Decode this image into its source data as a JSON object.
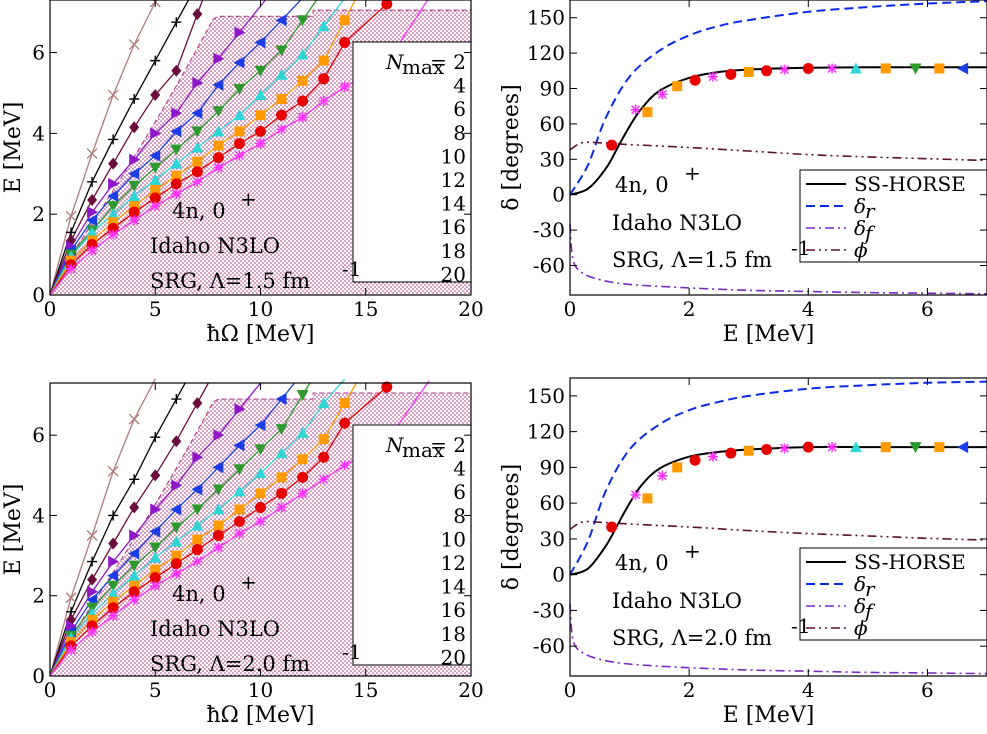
{
  "colors": {
    "nmax_2": "#b07a7a",
    "nmax_4": "#000000",
    "nmax_6": "#6b0d3c",
    "nmax_8": "#8f17c9",
    "nmax_10": "#1a3de6",
    "nmax_12": "#2e9a2e",
    "nmax_14": "#30d6d6",
    "nmax_16": "#ff9a00",
    "nmax_18": "#e60000",
    "nmax_20": "#ff33ff",
    "shade": "#b03080",
    "ss_horse": "#000000",
    "delta_r": "#0a2ae6",
    "delta_f": "#7a2bbf",
    "phi": "#5a1030"
  },
  "icons": {
    "marker_2": "cross-x",
    "marker_4": "plus",
    "marker_6": "diamond",
    "marker_8": "triangle-right",
    "marker_10": "triangle-left",
    "marker_12": "triangle-down",
    "marker_14": "triangle-up",
    "marker_16": "square",
    "marker_18": "circle",
    "marker_20": "asterisk"
  },
  "energy_panels": {
    "ylabel": "E [MeV]",
    "xlabel": "ħΩ [MeV]",
    "xlim": [
      0,
      20
    ],
    "ylim": [
      0,
      7.3
    ],
    "xticks": [
      "0",
      "5",
      "10",
      "15",
      "20"
    ],
    "yticks": [
      "0",
      "2",
      "4",
      "6"
    ],
    "legend_title": "N",
    "legend_title_sub": "max",
    "legend_eq": "= 2",
    "legend_labels": [
      "4",
      "6",
      "8",
      "10",
      "12",
      "14",
      "16",
      "18",
      "20"
    ],
    "annot_state": "4n, 0",
    "annot_state_sup": "+",
    "annot_interaction": "Idaho N3LO"
  },
  "phase_panels": {
    "ylabel": "δ [degrees]",
    "xlabel": "E [MeV]",
    "xlim": [
      0,
      7
    ],
    "ylim": [
      -85,
      165
    ],
    "xticks": [
      "0",
      "2",
      "4",
      "6"
    ],
    "yticks": [
      "150",
      "120",
      "90",
      "60",
      "30",
      "0",
      "-30",
      "-60"
    ],
    "legend_labels": [
      "SS-HORSE",
      "δ",
      "δ",
      "ϕ"
    ],
    "legend_subs": [
      "",
      "r",
      "f",
      ""
    ],
    "annot_state": "4n, 0",
    "annot_state_sup": "+",
    "annot_interaction": "Idaho N3LO"
  },
  "rows": [
    {
      "srg_label": "SRG, Λ=1.5 fm",
      "srg_sup": "-1"
    },
    {
      "srg_label": "SRG, Λ=2.0 fm",
      "srg_sup": "-1"
    }
  ],
  "chart_data": [
    {
      "type": "scatter",
      "xlabel": "ħΩ [MeV]",
      "ylabel": "E [MeV]",
      "xlim": [
        0,
        20
      ],
      "ylim": [
        0,
        7.3
      ],
      "grid": false,
      "legend": "right",
      "annotations": [
        "4n, 0+",
        "Idaho N3LO",
        "SRG, Λ=1.5 fm-1"
      ],
      "series": [
        {
          "name": "Nmax = 2",
          "x": [
            1,
            2,
            3,
            4,
            5
          ],
          "y": [
            1.95,
            3.5,
            4.95,
            6.2,
            7.25
          ]
        },
        {
          "name": "4",
          "x": [
            1,
            2,
            3,
            4,
            5,
            6
          ],
          "y": [
            1.55,
            2.8,
            3.85,
            4.85,
            5.8,
            6.75
          ]
        },
        {
          "name": "6",
          "x": [
            1,
            2,
            3,
            4,
            5,
            6,
            7
          ],
          "y": [
            1.35,
            2.35,
            3.25,
            4.15,
            4.95,
            5.55,
            6.95
          ]
        },
        {
          "name": "8",
          "x": [
            1,
            2,
            3,
            4,
            5,
            6,
            7,
            8,
            9
          ],
          "y": [
            1.2,
            2.05,
            2.75,
            3.35,
            4.0,
            4.5,
            5.25,
            5.85,
            6.5
          ]
        },
        {
          "name": "10",
          "x": [
            1,
            2,
            3,
            4,
            5,
            6,
            7,
            8,
            9,
            10,
            11
          ],
          "y": [
            1.1,
            1.85,
            2.45,
            3.0,
            3.45,
            4.05,
            4.5,
            5.2,
            5.75,
            6.25,
            6.8
          ]
        },
        {
          "name": "12",
          "x": [
            1,
            2,
            3,
            4,
            5,
            6,
            7,
            8,
            9,
            10,
            11,
            12
          ],
          "y": [
            1.0,
            1.6,
            2.2,
            2.7,
            3.15,
            3.6,
            4.05,
            4.55,
            5.1,
            5.55,
            6.05,
            6.8
          ]
        },
        {
          "name": "14",
          "x": [
            1,
            2,
            3,
            4,
            5,
            6,
            7,
            8,
            9,
            10,
            11,
            12,
            13,
            14
          ],
          "y": [
            0.95,
            1.55,
            2.0,
            2.45,
            2.85,
            3.25,
            3.65,
            4.05,
            4.45,
            4.95,
            5.45,
            5.95,
            6.65,
            7.35
          ]
        },
        {
          "name": "16",
          "x": [
            1,
            2,
            3,
            4,
            5,
            6,
            7,
            8,
            9,
            10,
            11,
            12,
            13,
            14
          ],
          "y": [
            0.85,
            1.35,
            1.8,
            2.2,
            2.6,
            2.95,
            3.3,
            3.7,
            4.05,
            4.45,
            4.85,
            5.3,
            5.8,
            6.8
          ]
        },
        {
          "name": "18",
          "x": [
            1,
            2,
            3,
            4,
            5,
            6,
            7,
            8,
            9,
            10,
            11,
            12,
            13,
            14,
            16
          ],
          "y": [
            0.75,
            1.25,
            1.65,
            2.05,
            2.4,
            2.75,
            3.05,
            3.4,
            3.75,
            4.05,
            4.45,
            4.8,
            5.35,
            6.25,
            7.2
          ]
        },
        {
          "name": "20",
          "x": [
            1,
            2,
            3,
            4,
            5,
            6,
            7,
            8,
            9,
            10,
            11,
            12,
            13,
            14,
            16,
            18
          ],
          "y": [
            0.65,
            1.1,
            1.5,
            1.85,
            2.2,
            2.5,
            2.8,
            3.15,
            3.45,
            3.75,
            4.1,
            4.4,
            4.8,
            5.15,
            5.75,
            7.35
          ]
        }
      ]
    },
    {
      "type": "line",
      "xlabel": "E [MeV]",
      "ylabel": "δ [degrees]",
      "xlim": [
        0,
        7
      ],
      "ylim": [
        -85,
        165
      ],
      "grid": false,
      "legend": "right",
      "annotations": [
        "4n, 0+",
        "Idaho N3LO",
        "SRG, Λ=1.5 fm-1"
      ],
      "series": [
        {
          "name": "SS-HORSE",
          "x": [
            0,
            0.3,
            0.6,
            0.8,
            1.0,
            1.2,
            1.5,
            2.0,
            2.5,
            3.0,
            4.0,
            5.0,
            6.0,
            7.0
          ],
          "y": [
            0,
            5,
            22,
            40,
            58,
            73,
            88,
            99,
            104,
            106,
            107.5,
            108,
            108,
            108
          ]
        },
        {
          "name": "δr",
          "x": [
            0,
            0.3,
            0.6,
            1.0,
            1.5,
            2.0,
            2.5,
            3.0,
            4.0,
            5.0,
            6.0,
            7.0
          ],
          "y": [
            0,
            25,
            65,
            100,
            122,
            135,
            143,
            148,
            155,
            159,
            162,
            164
          ]
        },
        {
          "name": "δf",
          "x": [
            0,
            0.05,
            0.2,
            0.5,
            1.0,
            2.0,
            3.0,
            4.0,
            5.0,
            6.0,
            7.0
          ],
          "y": [
            -25,
            -55,
            -66,
            -72,
            -76,
            -79,
            -81,
            -82,
            -83,
            -83.5,
            -84
          ]
        },
        {
          "name": "ϕ",
          "x": [
            0,
            0.2,
            0.5,
            1.0,
            2.0,
            3.0,
            4.0,
            5.0,
            6.0,
            7.0
          ],
          "y": [
            38,
            44,
            44,
            42.5,
            40,
            37,
            34,
            32,
            30.5,
            29
          ]
        },
        {
          "name": "SS-HORSE points",
          "x": [
            0.7,
            1.1,
            1.3,
            1.55,
            1.8,
            2.1,
            2.4,
            2.7,
            3.0,
            3.3,
            3.6,
            4.0,
            4.4,
            4.8,
            5.3,
            5.8,
            6.2,
            6.6
          ],
          "y": [
            42,
            72,
            70,
            85,
            92,
            97,
            100,
            102,
            104,
            105,
            106,
            107,
            107,
            107,
            107,
            107,
            107,
            107
          ]
        }
      ]
    },
    {
      "type": "scatter",
      "xlabel": "ħΩ [MeV]",
      "ylabel": "E [MeV]",
      "xlim": [
        0,
        20
      ],
      "ylim": [
        0,
        7.3
      ],
      "grid": false,
      "legend": "right",
      "annotations": [
        "4n, 0+",
        "Idaho N3LO",
        "SRG, Λ=2.0 fm-1"
      ],
      "series": [
        {
          "name": "Nmax = 2",
          "x": [
            1,
            2,
            3,
            4,
            5
          ],
          "y": [
            1.95,
            3.5,
            5.1,
            6.4,
            7.4
          ]
        },
        {
          "name": "4",
          "x": [
            1,
            2,
            3,
            4,
            5,
            6
          ],
          "y": [
            1.6,
            2.85,
            4.0,
            4.9,
            5.95,
            6.9
          ]
        },
        {
          "name": "6",
          "x": [
            1,
            2,
            3,
            4,
            5,
            6,
            7
          ],
          "y": [
            1.4,
            2.4,
            3.3,
            4.2,
            5.0,
            5.85,
            6.8
          ]
        },
        {
          "name": "8",
          "x": [
            1,
            2,
            3,
            4,
            5,
            6,
            7,
            8,
            9
          ],
          "y": [
            1.25,
            2.1,
            2.85,
            3.5,
            4.15,
            4.75,
            5.45,
            6.0,
            6.65
          ]
        },
        {
          "name": "10",
          "x": [
            1,
            2,
            3,
            4,
            5,
            6,
            7,
            8,
            9,
            10,
            11
          ],
          "y": [
            1.1,
            1.9,
            2.5,
            3.05,
            3.6,
            4.15,
            4.65,
            5.2,
            5.75,
            6.25,
            6.9
          ]
        },
        {
          "name": "12",
          "x": [
            1,
            2,
            3,
            4,
            5,
            6,
            7,
            8,
            9,
            10,
            11,
            12
          ],
          "y": [
            1.0,
            1.7,
            2.25,
            2.75,
            3.2,
            3.7,
            4.15,
            4.65,
            5.15,
            5.65,
            6.15,
            7.0
          ]
        },
        {
          "name": "14",
          "x": [
            1,
            2,
            3,
            4,
            5,
            6,
            7,
            8,
            9,
            10,
            11,
            12,
            13,
            14
          ],
          "y": [
            0.95,
            1.55,
            2.05,
            2.5,
            2.95,
            3.35,
            3.75,
            4.15,
            4.6,
            5.05,
            5.55,
            6.05,
            6.8,
            7.4
          ]
        },
        {
          "name": "16",
          "x": [
            1,
            2,
            3,
            4,
            5,
            6,
            7,
            8,
            9,
            10,
            11,
            12,
            13,
            14
          ],
          "y": [
            0.85,
            1.4,
            1.85,
            2.25,
            2.65,
            3.0,
            3.4,
            3.75,
            4.15,
            4.55,
            4.95,
            5.4,
            5.9,
            6.8
          ]
        },
        {
          "name": "18",
          "x": [
            1,
            2,
            3,
            4,
            5,
            6,
            7,
            8,
            9,
            10,
            11,
            12,
            13,
            14,
            16
          ],
          "y": [
            0.75,
            1.25,
            1.7,
            2.1,
            2.45,
            2.8,
            3.15,
            3.5,
            3.85,
            4.2,
            4.55,
            4.95,
            5.45,
            6.3,
            7.2
          ]
        },
        {
          "name": "20",
          "x": [
            1,
            2,
            3,
            4,
            5,
            6,
            7,
            8,
            9,
            10,
            11,
            12,
            13,
            14,
            16,
            18
          ],
          "y": [
            0.65,
            1.1,
            1.5,
            1.9,
            2.25,
            2.55,
            2.85,
            3.2,
            3.55,
            3.85,
            4.2,
            4.55,
            4.9,
            5.25,
            5.85,
            7.35
          ]
        }
      ]
    },
    {
      "type": "line",
      "xlabel": "E [MeV]",
      "ylabel": "δ [degrees]",
      "xlim": [
        0,
        7
      ],
      "ylim": [
        -85,
        165
      ],
      "grid": false,
      "legend": "right",
      "annotations": [
        "4n, 0+",
        "Idaho N3LO",
        "SRG, Λ=2.0 fm-1"
      ],
      "series": [
        {
          "name": "SS-HORSE",
          "x": [
            0,
            0.3,
            0.6,
            0.8,
            1.0,
            1.2,
            1.5,
            2.0,
            2.5,
            3.0,
            4.0,
            5.0,
            6.0,
            7.0
          ],
          "y": [
            0,
            5,
            24,
            42,
            60,
            75,
            89,
            99,
            103,
            105,
            107,
            107,
            107,
            107
          ]
        },
        {
          "name": "δr",
          "x": [
            0,
            0.3,
            0.6,
            1.0,
            1.5,
            2.0,
            2.5,
            3.0,
            4.0,
            5.0,
            6.0,
            7.0
          ],
          "y": [
            0,
            28,
            70,
            105,
            126,
            138,
            145,
            150,
            156,
            159,
            161,
            162
          ]
        },
        {
          "name": "δf",
          "x": [
            0,
            0.05,
            0.2,
            0.5,
            1.0,
            2.0,
            3.0,
            4.0,
            5.0,
            6.0,
            7.0
          ],
          "y": [
            -25,
            -55,
            -65,
            -71,
            -75,
            -78,
            -80,
            -81,
            -82,
            -82.5,
            -83
          ]
        },
        {
          "name": "ϕ",
          "x": [
            0,
            0.2,
            0.5,
            1.0,
            2.0,
            3.0,
            4.0,
            5.0,
            6.0,
            7.0
          ],
          "y": [
            38,
            44,
            44,
            42.5,
            40,
            37,
            34.5,
            32.5,
            30.5,
            29
          ]
        },
        {
          "name": "SS-HORSE points",
          "x": [
            0.7,
            1.1,
            1.3,
            1.55,
            1.8,
            2.1,
            2.4,
            2.7,
            3.0,
            3.3,
            3.6,
            4.0,
            4.4,
            4.8,
            5.3,
            5.8,
            6.2,
            6.6
          ],
          "y": [
            40,
            67,
            64,
            83,
            90,
            96,
            99,
            102,
            104,
            105,
            106,
            107,
            107,
            107,
            107,
            107,
            107,
            107
          ]
        }
      ]
    }
  ]
}
